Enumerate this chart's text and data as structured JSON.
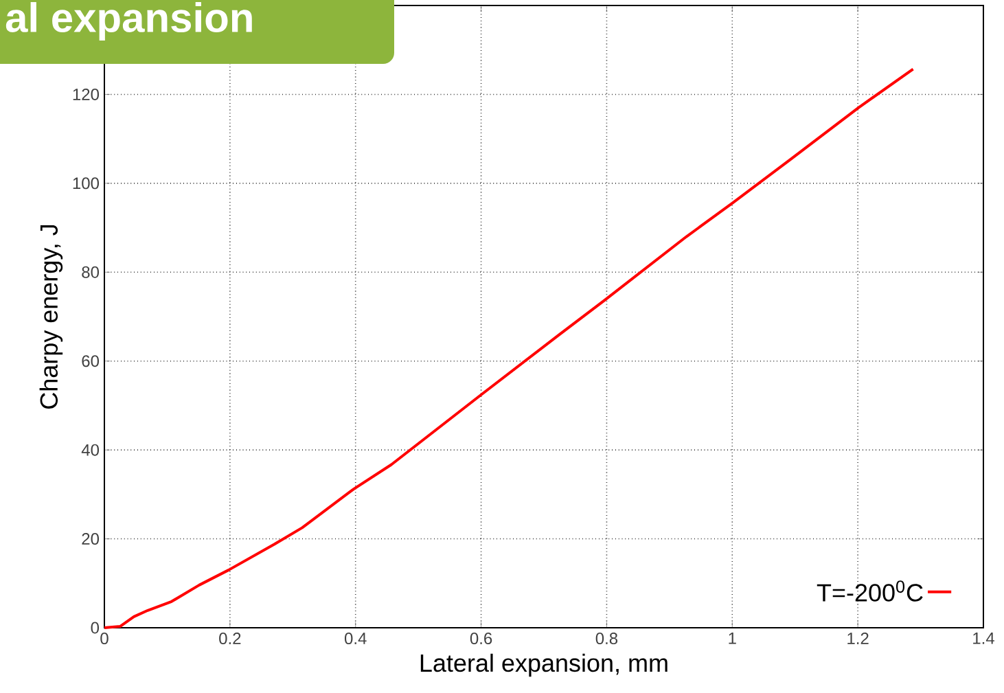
{
  "chart_data": {
    "type": "line",
    "title": "al expansion",
    "xlabel": "Lateral expansion, mm",
    "ylabel": "Charpy energy, J",
    "x": [
      0,
      0.025,
      0.047,
      0.069,
      0.107,
      0.151,
      0.198,
      0.271,
      0.315,
      0.397,
      0.457,
      0.599,
      0.725,
      0.796,
      0.927,
      1.0,
      1.092,
      1.201,
      1.288
    ],
    "series": [
      {
        "name": "T=-200$^{0}$C",
        "color": "#ff0000",
        "values": [
          0,
          0.3,
          2.5,
          3.9,
          5.9,
          9.6,
          13,
          18.8,
          22.5,
          31.2,
          36.7,
          52.3,
          66,
          73.6,
          88,
          95.5,
          105.3,
          117,
          125.7
        ]
      }
    ],
    "xlim": [
      0,
      1.4
    ],
    "ylim": [
      0,
      140
    ],
    "xticks": [
      0,
      0.2,
      0.4,
      0.6,
      0.8,
      1,
      1.2,
      1.4
    ],
    "yticks": [
      0,
      20,
      40,
      60,
      80,
      100,
      120
    ],
    "grid": true,
    "legend": "bottom right",
    "line_style": "solid"
  }
}
